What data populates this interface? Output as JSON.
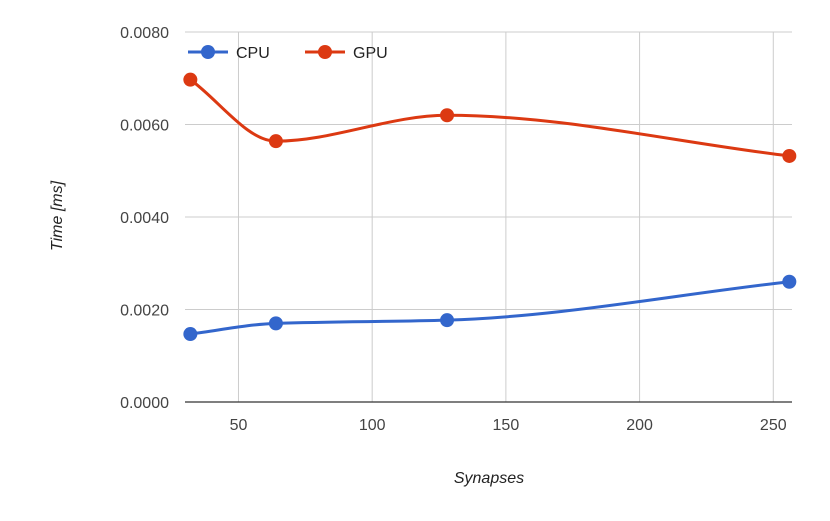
{
  "chart_data": {
    "type": "line",
    "xlabel": "Synapses",
    "ylabel": "Time [ms]",
    "x": [
      32,
      64,
      128,
      256
    ],
    "xlim": [
      30,
      257
    ],
    "ylim": [
      0,
      0.008
    ],
    "x_ticks": [
      50,
      100,
      150,
      200,
      250
    ],
    "y_ticks": [
      0,
      0.002,
      0.004,
      0.006,
      0.008
    ],
    "y_tick_labels": [
      "0.0000",
      "0.0020",
      "0.0040",
      "0.0060",
      "0.0080"
    ],
    "x_tick_labels": [
      "50",
      "100",
      "150",
      "200",
      "250"
    ],
    "grid": true,
    "legend_position": "top-left",
    "smooth": true,
    "series": [
      {
        "name": "CPU",
        "color": "#3366cc",
        "values": [
          0.00147,
          0.0017,
          0.00177,
          0.0026
        ]
      },
      {
        "name": "GPU",
        "color": "#dc3912",
        "values": [
          0.00697,
          0.00564,
          0.0062,
          0.00532
        ]
      }
    ]
  }
}
